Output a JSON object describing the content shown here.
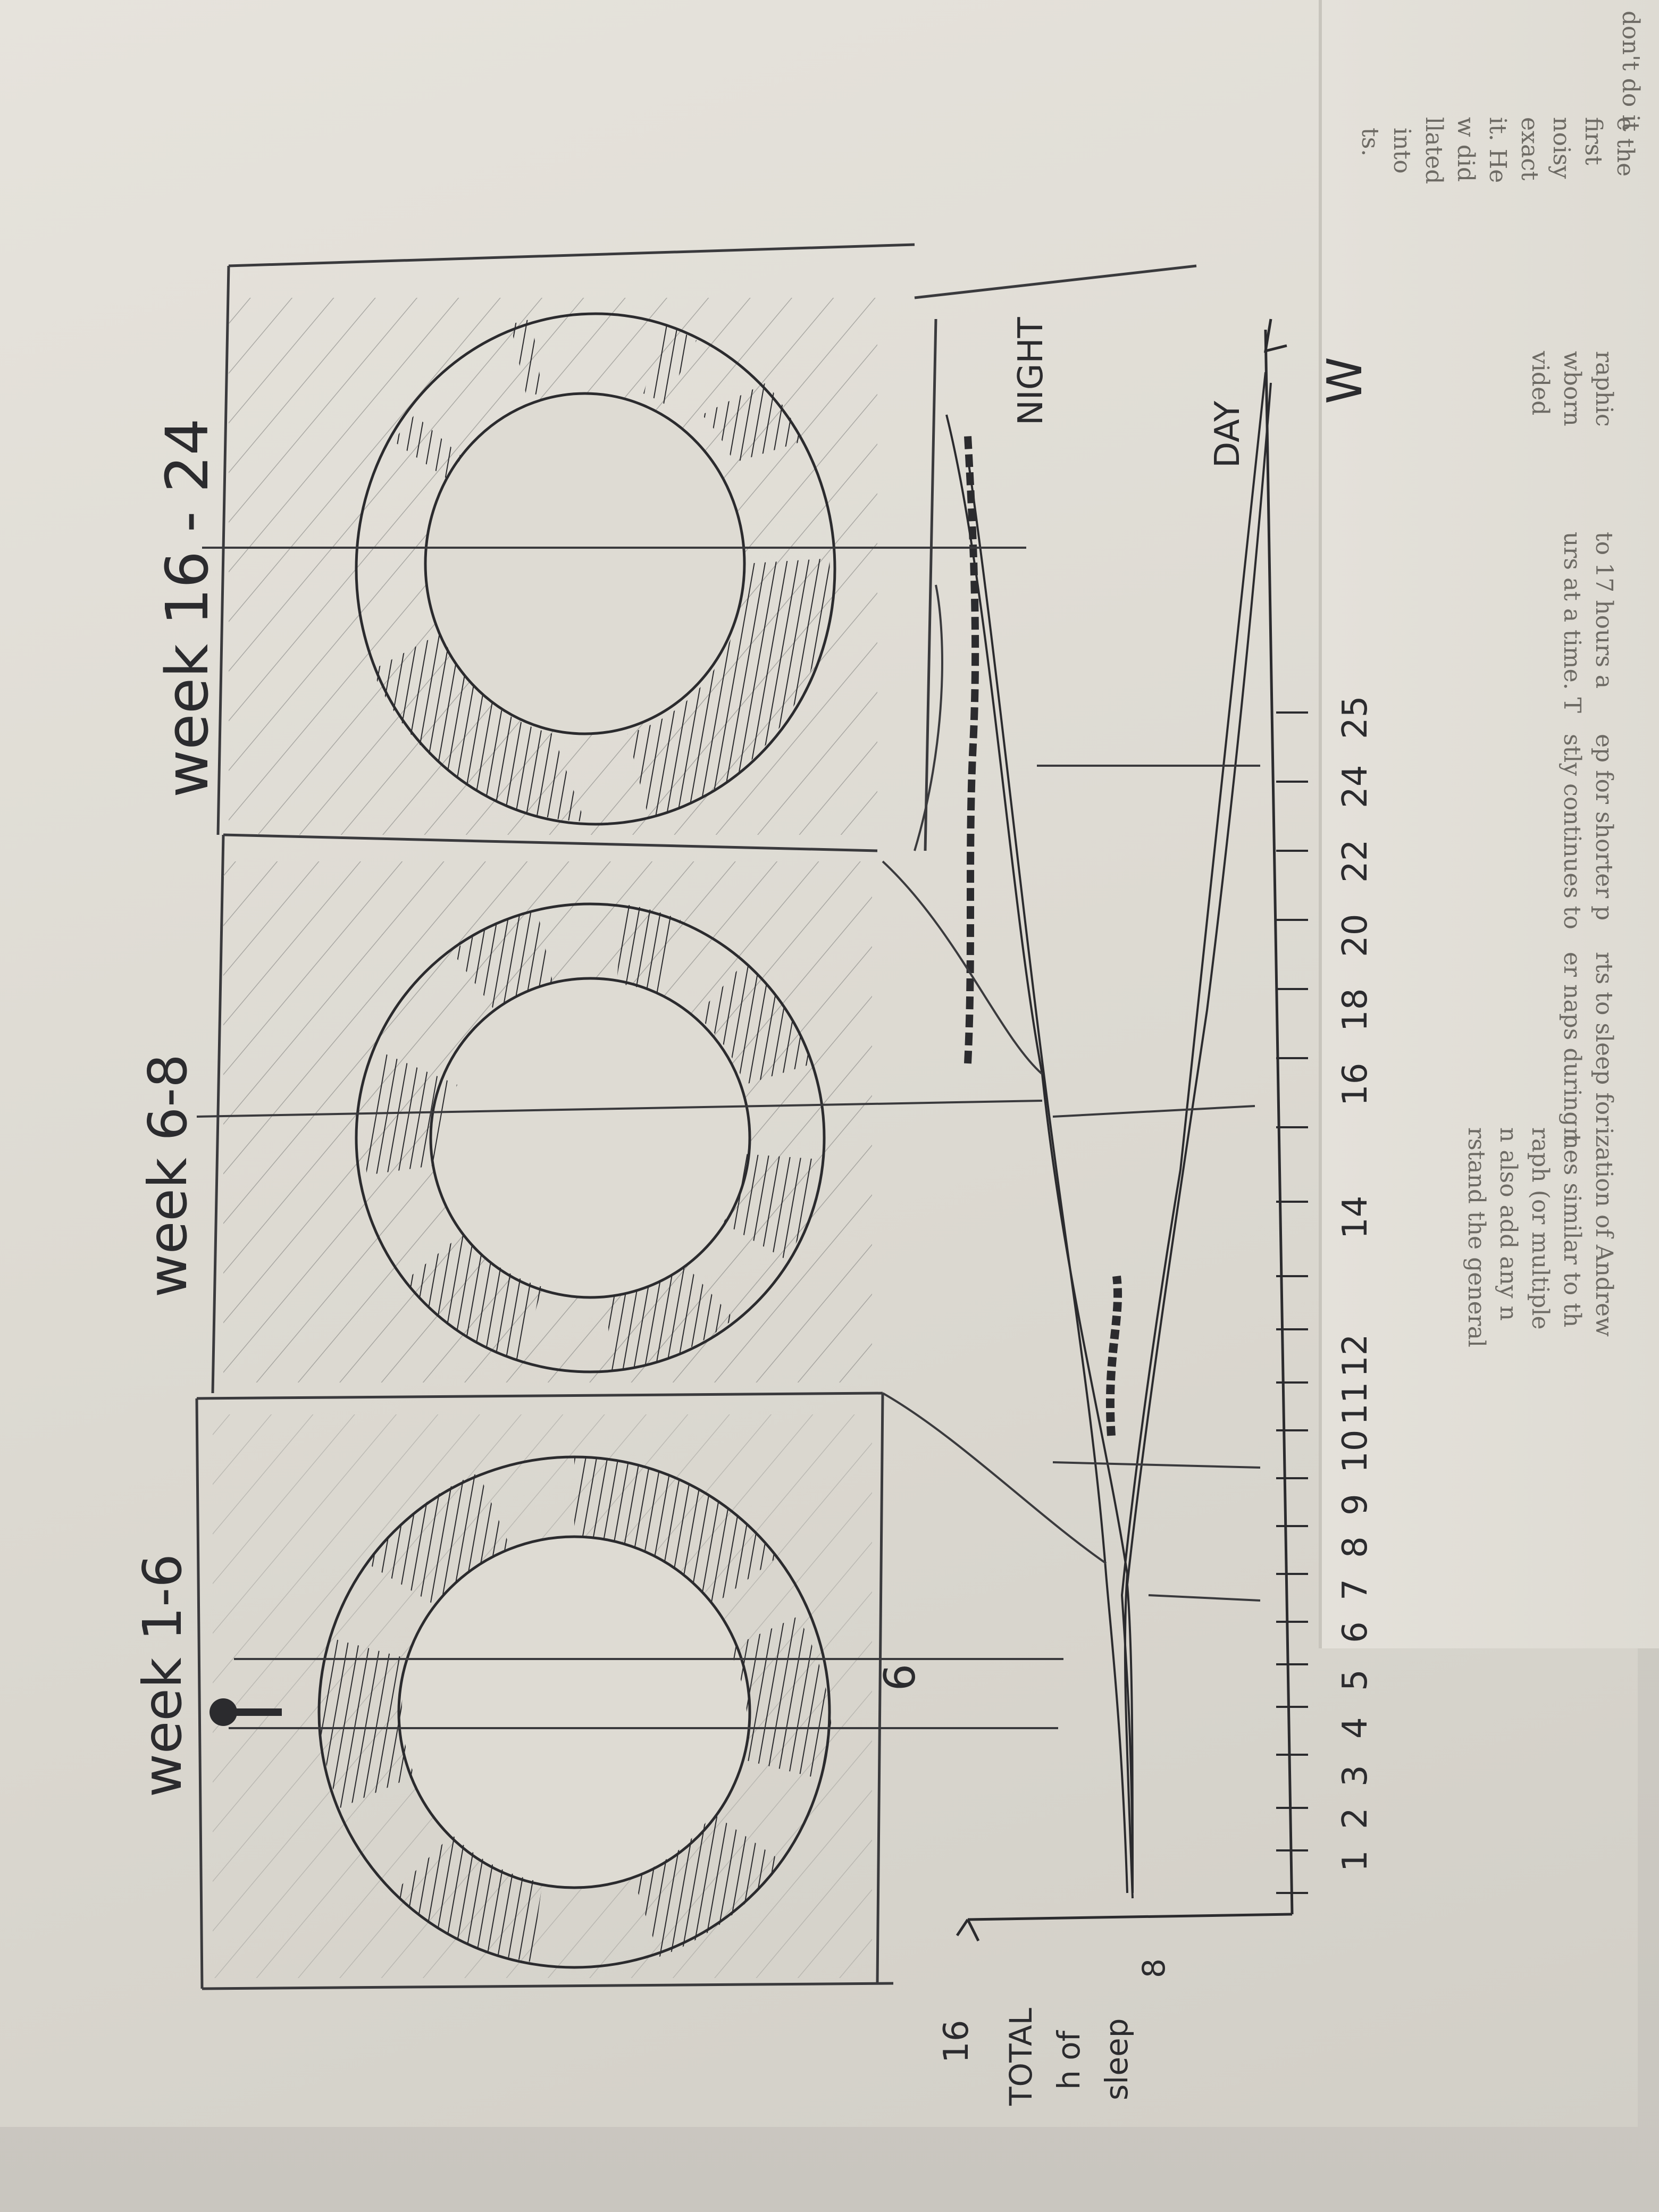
{
  "sketch": {
    "panel_titles": [
      "week 1-6",
      "week 6-8",
      "week 16 - 24"
    ],
    "y_axis": {
      "top_tick": "16",
      "label_lines": [
        "TOTAL",
        "h of",
        "sleep"
      ],
      "bottom_tick": "8"
    },
    "x_axis": {
      "ticks": [
        "1",
        "2",
        "3",
        "4",
        "5",
        "6",
        "7",
        "8",
        "9",
        "10",
        "11",
        "12",
        "14",
        "16",
        "18",
        "20",
        "22",
        "24",
        "25"
      ],
      "end_label": "W"
    },
    "marker_label": "6",
    "series_labels": [
      "NIGHT",
      "DAY"
    ]
  },
  "book_text": {
    "right_column_top": [
      "don't do it",
      "e the",
      "first",
      "noisy",
      "exact",
      "it. He",
      "w did",
      "llated",
      "into",
      "ts."
    ],
    "right_column_mid": [
      "raphic",
      "wborn",
      "vided",
      "to 17 hours a",
      "urs at a time. T",
      "ep for shorter p",
      "stly continues to",
      "rts to sleep for",
      "er naps during t"
    ],
    "right_column_bottom": [
      "ization of Andrew",
      "mes similar to th",
      "raph (or multiple",
      "n also add any n",
      "rstand the general"
    ]
  }
}
